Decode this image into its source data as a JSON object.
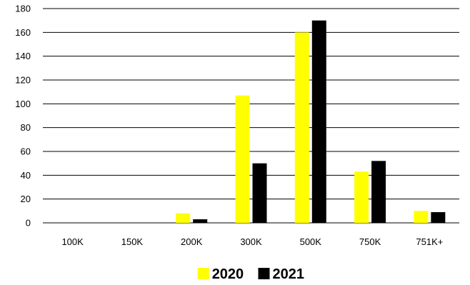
{
  "chart_data": {
    "type": "bar",
    "categories": [
      "100K",
      "150K",
      "200K",
      "300K",
      "500K",
      "750K",
      "751K+"
    ],
    "series": [
      {
        "name": "2020",
        "values": [
          0,
          0,
          8,
          107,
          160,
          43,
          10
        ],
        "color": "#FFFF00"
      },
      {
        "name": "2021",
        "values": [
          0,
          0,
          3,
          50,
          170,
          52,
          9
        ],
        "color": "#000000"
      }
    ],
    "ylim": [
      0,
      180
    ],
    "yticks": [
      0,
      20,
      40,
      60,
      80,
      100,
      120,
      140,
      160,
      180
    ],
    "title": "",
    "xlabel": "",
    "ylabel": "",
    "grid": true,
    "legend": "bottom-center"
  }
}
